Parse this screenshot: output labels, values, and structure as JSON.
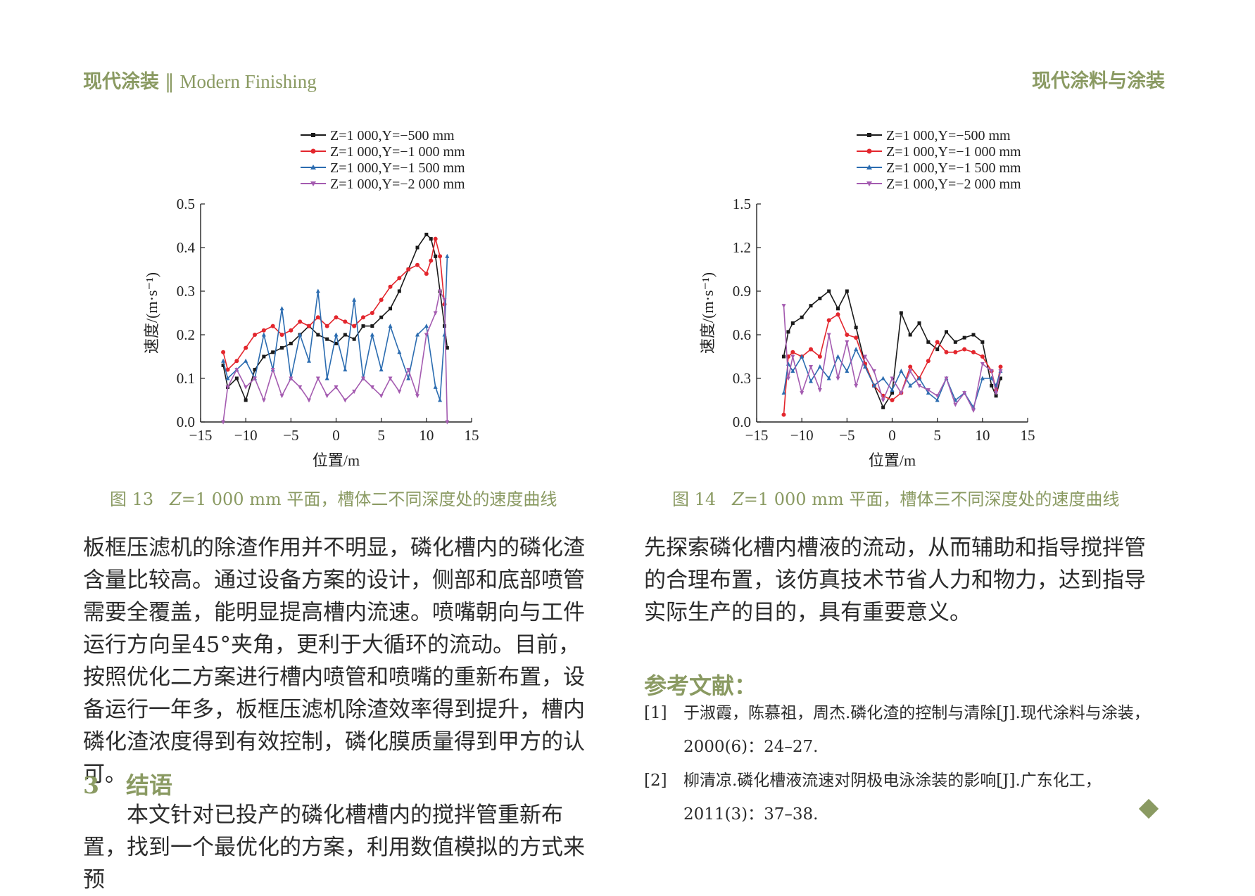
{
  "header": {
    "left_cn": "现代涂装",
    "left_sep": "‖",
    "left_en": "Modern Finishing",
    "right": "现代涂料与涂装"
  },
  "figures": [
    {
      "caption_num": "图 13",
      "caption_z": "Z",
      "caption_rest": "=1 000 mm 平面，槽体二不同深度处的速度曲线"
    },
    {
      "caption_num": "图 14",
      "caption_z": "Z",
      "caption_rest": "=1 000 mm 平面，槽体三不同深度处的速度曲线"
    }
  ],
  "chart_data": [
    {
      "type": "line",
      "xlabel": "位置/m",
      "ylabel": "速度/(m·s⁻¹)",
      "xlim": [
        -15,
        15
      ],
      "ylim": [
        0,
        0.5
      ],
      "xticks": [
        "−15",
        "−10",
        "−5",
        "0",
        "5",
        "10",
        "15"
      ],
      "yticks": [
        "0.0",
        "0.1",
        "0.2",
        "0.3",
        "0.4",
        "0.5"
      ],
      "legend_position": "top",
      "series": [
        {
          "name": "Z=1 000,Y=−500 mm",
          "color": "#1a1a1a",
          "x": [
            -12.5,
            -12,
            -11,
            -10,
            -9,
            -8,
            -7,
            -6,
            -5,
            -4,
            -3,
            -2,
            -1,
            0,
            1,
            2,
            3,
            4,
            5,
            6,
            7,
            8,
            9,
            10,
            10.5,
            11,
            11.5,
            12,
            12.3
          ],
          "y": [
            0.13,
            0.08,
            0.1,
            0.05,
            0.12,
            0.15,
            0.16,
            0.17,
            0.18,
            0.2,
            0.22,
            0.2,
            0.19,
            0.18,
            0.2,
            0.19,
            0.22,
            0.22,
            0.24,
            0.26,
            0.3,
            0.35,
            0.4,
            0.43,
            0.42,
            0.38,
            0.3,
            0.22,
            0.17
          ]
        },
        {
          "name": "Z=1 000,Y=−1 000 mm",
          "color": "#e3262d",
          "x": [
            -12.5,
            -12,
            -11,
            -10,
            -9,
            -8,
            -7,
            -6,
            -5,
            -4,
            -3,
            -2,
            -1,
            0,
            1,
            2,
            3,
            4,
            5,
            6,
            7,
            8,
            9,
            10,
            10.5,
            11,
            11.5,
            12
          ],
          "y": [
            0.16,
            0.12,
            0.14,
            0.17,
            0.2,
            0.21,
            0.22,
            0.2,
            0.21,
            0.23,
            0.22,
            0.24,
            0.22,
            0.24,
            0.23,
            0.22,
            0.24,
            0.25,
            0.28,
            0.31,
            0.33,
            0.35,
            0.36,
            0.34,
            0.37,
            0.42,
            0.38,
            0.27
          ]
        },
        {
          "name": "Z=1 000,Y=−1 500 mm",
          "color": "#2b6cb0",
          "x": [
            -12.5,
            -12,
            -11,
            -10,
            -9,
            -8,
            -7,
            -6,
            -5,
            -4,
            -3,
            -2,
            -1,
            0,
            1,
            2,
            3,
            4,
            5,
            6,
            7,
            8,
            9,
            10,
            11,
            11.5,
            12,
            12.3
          ],
          "y": [
            0.14,
            0.1,
            0.12,
            0.14,
            0.1,
            0.2,
            0.12,
            0.26,
            0.1,
            0.2,
            0.14,
            0.3,
            0.1,
            0.2,
            0.12,
            0.28,
            0.1,
            0.2,
            0.12,
            0.22,
            0.16,
            0.1,
            0.2,
            0.22,
            0.08,
            0.05,
            0.2,
            0.38
          ]
        },
        {
          "name": "Z=1 000,Y=−2 000 mm",
          "color": "#a45bb0",
          "x": [
            -12.5,
            -12,
            -11,
            -10,
            -9,
            -8,
            -7,
            -6,
            -5,
            -4,
            -3,
            -2,
            -1,
            0,
            1,
            2,
            3,
            4,
            5,
            6,
            7,
            8,
            9,
            10,
            11,
            11.5,
            12,
            12.3
          ],
          "y": [
            0.0,
            0.08,
            0.12,
            0.08,
            0.1,
            0.05,
            0.12,
            0.06,
            0.1,
            0.08,
            0.05,
            0.1,
            0.06,
            0.08,
            0.05,
            0.07,
            0.1,
            0.08,
            0.06,
            0.1,
            0.07,
            0.12,
            0.06,
            0.2,
            0.25,
            0.3,
            0.28,
            0.0
          ]
        }
      ]
    },
    {
      "type": "line",
      "xlabel": "位置/m",
      "ylabel": "速度/(m·s⁻¹)",
      "xlim": [
        -15,
        15
      ],
      "ylim": [
        0,
        1.5
      ],
      "xticks": [
        "−15",
        "−10",
        "−5",
        "0",
        "5",
        "10",
        "15"
      ],
      "yticks": [
        "0.0",
        "0.3",
        "0.6",
        "0.9",
        "1.2",
        "1.5"
      ],
      "legend_position": "top",
      "series": [
        {
          "name": "Z=1 000,Y=−500 mm",
          "color": "#1a1a1a",
          "x": [
            -12,
            -11.5,
            -11,
            -10,
            -9,
            -8,
            -7,
            -6,
            -5,
            -4,
            -3,
            -2,
            -1,
            0,
            1,
            2,
            3,
            4,
            5,
            6,
            7,
            8,
            9,
            10,
            11,
            11.5,
            12
          ],
          "y": [
            0.45,
            0.62,
            0.68,
            0.72,
            0.8,
            0.85,
            0.9,
            0.78,
            0.9,
            0.65,
            0.4,
            0.25,
            0.1,
            0.2,
            0.75,
            0.6,
            0.68,
            0.55,
            0.5,
            0.62,
            0.55,
            0.58,
            0.6,
            0.55,
            0.25,
            0.18,
            0.3
          ]
        },
        {
          "name": "Z=1 000,Y=−1 000 mm",
          "color": "#e3262d",
          "x": [
            -12,
            -11.5,
            -11,
            -10,
            -9,
            -8,
            -7,
            -6,
            -5,
            -4,
            -3,
            -2,
            -1,
            0,
            1,
            2,
            3,
            4,
            5,
            6,
            7,
            8,
            9,
            10,
            11,
            11.5,
            12
          ],
          "y": [
            0.05,
            0.45,
            0.48,
            0.45,
            0.5,
            0.45,
            0.7,
            0.74,
            0.6,
            0.58,
            0.4,
            0.25,
            0.18,
            0.15,
            0.2,
            0.38,
            0.3,
            0.42,
            0.55,
            0.48,
            0.48,
            0.5,
            0.48,
            0.45,
            0.35,
            0.22,
            0.38
          ]
        },
        {
          "name": "Z=1 000,Y=−1 500 mm",
          "color": "#2b6cb0",
          "x": [
            -12,
            -11.5,
            -11,
            -10,
            -9,
            -8,
            -7,
            -6,
            -5,
            -4,
            -3,
            -2,
            -1,
            0,
            1,
            2,
            3,
            4,
            5,
            6,
            7,
            8,
            9,
            10,
            11,
            11.5,
            12
          ],
          "y": [
            0.2,
            0.4,
            0.35,
            0.45,
            0.28,
            0.38,
            0.3,
            0.45,
            0.35,
            0.5,
            0.38,
            0.25,
            0.3,
            0.22,
            0.35,
            0.25,
            0.3,
            0.2,
            0.15,
            0.3,
            0.15,
            0.2,
            0.1,
            0.3,
            0.3,
            0.25,
            0.35
          ]
        },
        {
          "name": "Z=1 000,Y=−2 000 mm",
          "color": "#a45bb0",
          "x": [
            -12,
            -11.5,
            -11,
            -10,
            -9,
            -8,
            -7,
            -6,
            -5,
            -4,
            -3,
            -2,
            -1,
            0,
            1,
            2,
            3,
            4,
            5,
            6,
            7,
            8,
            9,
            10,
            11,
            11.5,
            12
          ],
          "y": [
            0.8,
            0.3,
            0.45,
            0.2,
            0.38,
            0.22,
            0.6,
            0.3,
            0.55,
            0.25,
            0.45,
            0.35,
            0.15,
            0.3,
            0.2,
            0.35,
            0.25,
            0.22,
            0.18,
            0.3,
            0.12,
            0.2,
            0.08,
            0.4,
            0.35,
            0.2,
            0.35
          ]
        }
      ]
    }
  ],
  "left_column": {
    "para1": "板框压滤机的除渣作用并不明显，磷化槽内的磷化渣含量比较高。通过设备方案的设计，侧部和底部喷管需要全覆盖，能明显提高槽内流速。喷嘴朝向与工件运行方向呈45°夹角，更利于大循环的流动。目前，按照优化二方案进行槽内喷管和喷嘴的重新布置，设备运行一年多，板框压滤机除渣效率得到提升，槽内磷化渣浓度得到有效控制，磷化膜质量得到甲方的认可。",
    "section_num": "3",
    "section_title": "结语",
    "para2": "本文针对已投产的磷化槽槽内的搅拌管重新布置，找到一个最优化的方案，利用数值模拟的方式来预"
  },
  "right_column": {
    "para1": "先探索磷化槽内槽液的流动，从而辅助和指导搅拌管的合理布置，该仿真技术节省人力和物力，达到指导实际生产的目的，具有重要意义。",
    "ref_title": "参考文献：",
    "references": [
      {
        "num": "[1]",
        "text": "于淑霞，陈慕祖，周杰.磷化渣的控制与清除[J].现代涂料与涂装，2000(6)：24–27."
      },
      {
        "num": "[2]",
        "text": "柳清凉.磷化槽液流速对阴极电泳涂装的影响[J].广东化工，2011(3)：37–38."
      }
    ]
  }
}
